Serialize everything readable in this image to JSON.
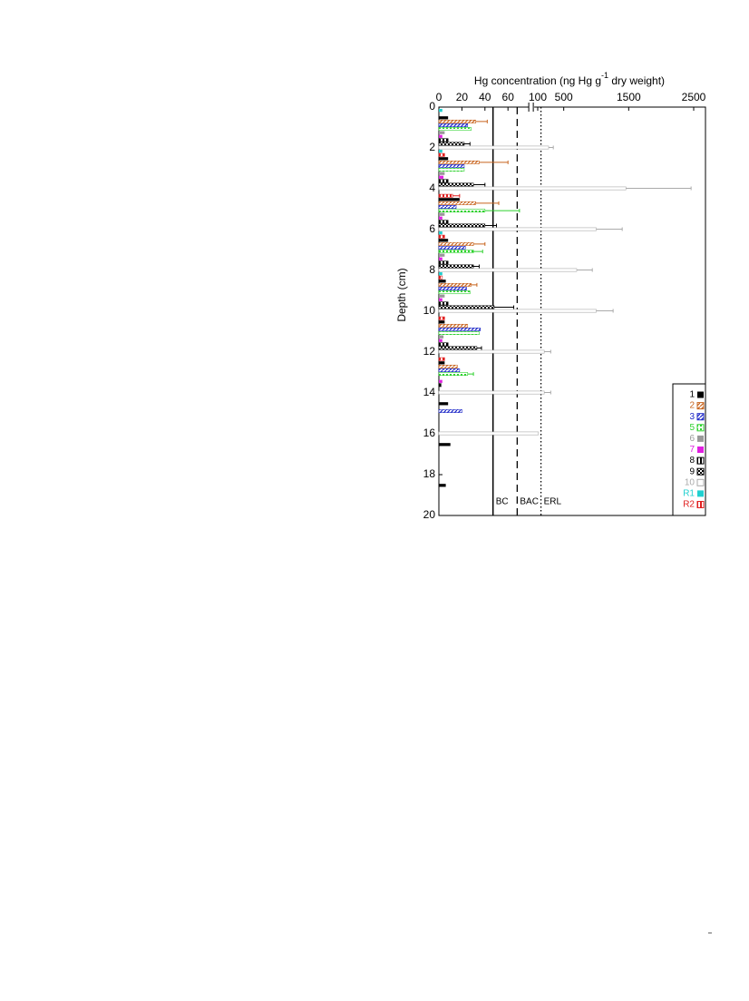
{
  "chart_data": {
    "type": "bar",
    "orientation": "horizontal",
    "x_label": [
      "Hg concentration (ng Hg g",
      "-1",
      " dry weight)"
    ],
    "y_label": "Depth (cm)",
    "xlim": [
      0,
      2500
    ],
    "axis_break": [
      75,
      100
    ],
    "xticks": [
      0,
      20,
      40,
      60,
      100,
      500,
      1500,
      2500
    ],
    "ylim": [
      0,
      20
    ],
    "yticks": [
      0,
      2,
      4,
      6,
      8,
      10,
      12,
      14,
      16,
      18,
      20
    ],
    "y": [
      0,
      2,
      4,
      6,
      8,
      10,
      12,
      14,
      16,
      18
    ],
    "reference_lines": [
      {
        "label": "BC",
        "value": 47,
        "style": "solid"
      },
      {
        "label": "BAC",
        "value": 68,
        "style": "dashed"
      },
      {
        "label": "ERL",
        "value": 150,
        "style": "dotted"
      }
    ],
    "legend": "lower right",
    "series": [
      {
        "name": "1",
        "color": "#000000",
        "pattern": "solid",
        "values": [
          8,
          8,
          18,
          8,
          6,
          5,
          5,
          8,
          10,
          6
        ],
        "errors": [
          null,
          null,
          null,
          null,
          null,
          null,
          null,
          null,
          null,
          null
        ]
      },
      {
        "name": "2",
        "color": "#c8641e",
        "pattern": "diagonal",
        "values": [
          32,
          35,
          32,
          30,
          28,
          25,
          16,
          null,
          null,
          null
        ],
        "errors": [
          10,
          25,
          20,
          10,
          5,
          null,
          null,
          null,
          null,
          null
        ]
      },
      {
        "name": "3",
        "color": "#1e28c8",
        "pattern": "diagonal",
        "values": [
          25,
          22,
          15,
          23,
          24,
          36,
          18,
          20,
          null,
          null
        ],
        "errors": [
          null,
          null,
          null,
          null,
          null,
          null,
          null,
          null,
          null,
          null
        ]
      },
      {
        "name": "5",
        "color": "#2ed12e",
        "pattern": "dots",
        "values": [
          28,
          22,
          40,
          30,
          27,
          35,
          25,
          null,
          null,
          null
        ],
        "errors": [
          null,
          null,
          30,
          8,
          null,
          null,
          5,
          null,
          null,
          null
        ]
      },
      {
        "name": "6",
        "color": "#999999",
        "pattern": "solid",
        "values": [
          5,
          5,
          5,
          5,
          5,
          4,
          null,
          null,
          null,
          null
        ],
        "errors": [
          null,
          null,
          null,
          null,
          null,
          null,
          null,
          null,
          null,
          null
        ]
      },
      {
        "name": "7",
        "color": "#e020e0",
        "pattern": "solid",
        "values": [
          3,
          4,
          3,
          3,
          3,
          3,
          3,
          null,
          null,
          null
        ],
        "errors": [
          null,
          null,
          null,
          null,
          null,
          null,
          null,
          null,
          null,
          null
        ]
      },
      {
        "name": "8",
        "color": "#000000",
        "pattern": "vertical",
        "values": [
          8,
          8,
          8,
          8,
          8,
          8,
          2,
          null,
          null,
          null
        ],
        "errors": [
          null,
          null,
          null,
          null,
          null,
          null,
          null,
          null,
          null,
          null
        ]
      },
      {
        "name": "9",
        "color": "#000000",
        "pattern": "checker",
        "values": [
          22,
          30,
          40,
          30,
          48,
          33,
          null,
          null,
          null,
          null
        ],
        "errors": [
          5,
          10,
          10,
          5,
          17,
          4,
          null,
          null,
          null,
          null
        ]
      },
      {
        "name": "10",
        "color": "#aaaaaa",
        "pattern": "empty",
        "values": [
          268,
          1457,
          1000,
          700,
          1000,
          200,
          200,
          110,
          null,
          null
        ],
        "errors": [
          72,
          1003,
          400,
          240,
          260,
          100,
          100,
          null,
          null,
          null
        ]
      },
      {
        "name": "R1",
        "color": "#20d0d0",
        "pattern": "solid",
        "values": [
          3,
          3,
          null,
          3,
          3,
          null,
          null,
          null,
          null,
          null
        ],
        "errors": [
          null,
          null,
          null,
          null,
          null,
          null,
          null,
          null,
          null,
          null
        ]
      },
      {
        "name": "R2",
        "color": "#e02020",
        "pattern": "vertical",
        "values": [
          null,
          5,
          12,
          5,
          3,
          5,
          5,
          null,
          null,
          null
        ],
        "errors": [
          null,
          null,
          6,
          null,
          null,
          null,
          null,
          null,
          null,
          null
        ]
      }
    ]
  }
}
